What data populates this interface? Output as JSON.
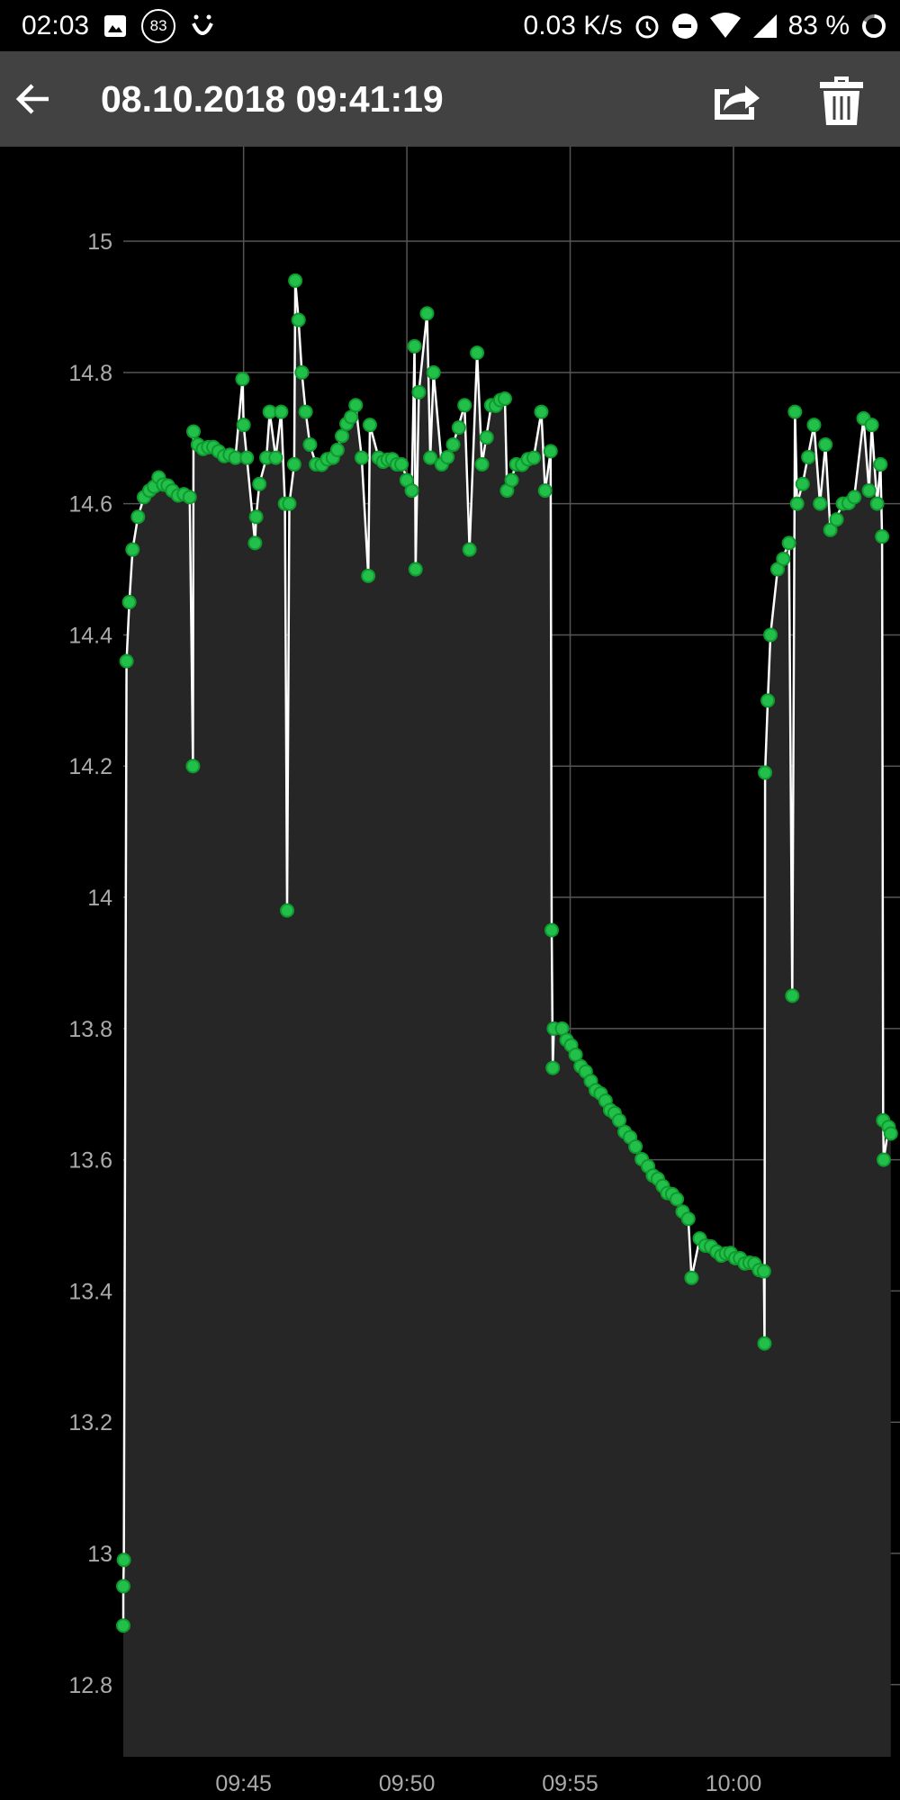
{
  "status_bar": {
    "time": "02:03",
    "notification_badge": "83",
    "net_speed": "0.03 K/s",
    "battery": "83 %",
    "icons": [
      "image-icon",
      "badge-83-icon",
      "smiley-icon",
      "alarm-icon",
      "do-not-disturb-icon",
      "wifi-icon",
      "signal-icon",
      "battery-ring-icon"
    ]
  },
  "toolbar": {
    "title": "08.10.2018 09:41:19",
    "back_icon": "arrow-left-icon",
    "share_icon": "share-icon",
    "delete_icon": "trash-icon"
  },
  "colors": {
    "marker": "#22c04a",
    "marker_edge": "#0f9a2e",
    "line": "#ffffff",
    "area": "#262626",
    "background": "#000000",
    "grid": "#555555",
    "toolbar": "#424242"
  },
  "chart_data": {
    "type": "line",
    "markers": true,
    "area_fill": true,
    "grid": true,
    "xlim": [
      "09:41:19",
      "10:04:56"
    ],
    "ylim": [
      12.69,
      15.14
    ],
    "x_ticks": [
      "09:45",
      "09:50",
      "09:55",
      "10:00"
    ],
    "y_ticks": [
      "15",
      "14.8",
      "14.6",
      "14.4",
      "14.2",
      "14",
      "13.8",
      "13.6",
      "13.4",
      "13.2",
      "13",
      "12.8"
    ],
    "points": [
      [
        "09:41:19",
        12.89
      ],
      [
        "09:41:19",
        12.95
      ],
      [
        "09:41:20",
        12.99
      ],
      [
        "09:41:25",
        14.36
      ],
      [
        "09:41:30",
        14.45
      ],
      [
        "09:41:36",
        14.53
      ],
      [
        "09:41:46",
        14.58
      ],
      [
        "09:41:57",
        14.61
      ],
      [
        "09:42:07",
        14.62
      ],
      [
        "09:42:24",
        14.64
      ],
      [
        "09:42:49",
        14.62
      ],
      [
        "09:43:21",
        14.61
      ],
      [
        "09:43:27",
        14.2
      ],
      [
        "09:43:28",
        14.71
      ],
      [
        "09:43:36",
        14.69
      ],
      [
        "09:44:14",
        14.68
      ],
      [
        "09:44:45",
        14.67
      ],
      [
        "09:44:58",
        14.79
      ],
      [
        "09:45:00",
        14.72
      ],
      [
        "09:45:06",
        14.67
      ],
      [
        "09:45:21",
        14.54
      ],
      [
        "09:45:23",
        14.58
      ],
      [
        "09:45:29",
        14.63
      ],
      [
        "09:45:42",
        14.67
      ],
      [
        "09:45:48",
        14.74
      ],
      [
        "09:45:59",
        14.67
      ],
      [
        "09:46:09",
        14.74
      ],
      [
        "09:46:16",
        14.6
      ],
      [
        "09:46:20",
        13.98
      ],
      [
        "09:46:24",
        14.6
      ],
      [
        "09:46:33",
        14.66
      ],
      [
        "09:46:35",
        14.94
      ],
      [
        "09:46:41",
        14.88
      ],
      [
        "09:46:47",
        14.8
      ],
      [
        "09:46:54",
        14.74
      ],
      [
        "09:47:02",
        14.69
      ],
      [
        "09:47:13",
        14.66
      ],
      [
        "09:47:44",
        14.67
      ],
      [
        "09:48:26",
        14.75
      ],
      [
        "09:48:37",
        14.67
      ],
      [
        "09:48:49",
        14.49
      ],
      [
        "09:48:52",
        14.72
      ],
      [
        "09:49:08",
        14.67
      ],
      [
        "09:49:50",
        14.66
      ],
      [
        "09:50:09",
        14.62
      ],
      [
        "09:50:14",
        14.84
      ],
      [
        "09:50:16",
        14.5
      ],
      [
        "09:50:22",
        14.77
      ],
      [
        "09:50:37",
        14.89
      ],
      [
        "09:50:43",
        14.67
      ],
      [
        "09:50:49",
        14.8
      ],
      [
        "09:51:04",
        14.66
      ],
      [
        "09:51:25",
        14.69
      ],
      [
        "09:51:46",
        14.75
      ],
      [
        "09:51:55",
        14.53
      ],
      [
        "09:52:09",
        14.83
      ],
      [
        "09:52:18",
        14.66
      ],
      [
        "09:52:35",
        14.75
      ],
      [
        "09:53:00",
        14.76
      ],
      [
        "09:53:04",
        14.62
      ],
      [
        "09:53:21",
        14.66
      ],
      [
        "09:53:53",
        14.67
      ],
      [
        "09:54:07",
        14.74
      ],
      [
        "09:54:14",
        14.62
      ],
      [
        "09:54:24",
        14.68
      ],
      [
        "09:54:26",
        13.95
      ],
      [
        "09:54:28",
        13.74
      ],
      [
        "09:54:30",
        13.8
      ],
      [
        "09:54:45",
        13.8
      ],
      [
        "09:55:10",
        13.76
      ],
      [
        "09:55:38",
        13.72
      ],
      [
        "09:56:05",
        13.69
      ],
      [
        "09:56:30",
        13.66
      ],
      [
        "09:57:00",
        13.62
      ],
      [
        "09:57:23",
        13.59
      ],
      [
        "09:57:50",
        13.56
      ],
      [
        "09:58:16",
        13.54
      ],
      [
        "09:58:37",
        13.51
      ],
      [
        "09:58:43",
        13.42
      ],
      [
        "09:58:58",
        13.48
      ],
      [
        "09:59:29",
        13.46
      ],
      [
        "10:00:12",
        13.45
      ],
      [
        "10:00:56",
        13.43
      ],
      [
        "10:00:57",
        13.32
      ],
      [
        "10:00:58",
        14.19
      ],
      [
        "10:01:03",
        14.3
      ],
      [
        "10:01:08",
        14.4
      ],
      [
        "10:01:21",
        14.5
      ],
      [
        "10:01:42",
        14.54
      ],
      [
        "10:01:48",
        13.85
      ],
      [
        "10:01:53",
        14.74
      ],
      [
        "10:01:57",
        14.6
      ],
      [
        "10:02:07",
        14.63
      ],
      [
        "10:02:28",
        14.72
      ],
      [
        "10:02:39",
        14.6
      ],
      [
        "10:02:49",
        14.69
      ],
      [
        "10:02:58",
        14.56
      ],
      [
        "10:03:21",
        14.6
      ],
      [
        "10:03:42",
        14.61
      ],
      [
        "10:03:59",
        14.73
      ],
      [
        "10:04:09",
        14.62
      ],
      [
        "10:04:14",
        14.72
      ],
      [
        "10:04:24",
        14.6
      ],
      [
        "10:04:30",
        14.66
      ],
      [
        "10:04:33",
        14.55
      ],
      [
        "10:04:35",
        13.66
      ],
      [
        "10:04:36",
        13.6
      ],
      [
        "10:04:45",
        13.65
      ],
      [
        "10:04:49",
        13.64
      ]
    ]
  }
}
